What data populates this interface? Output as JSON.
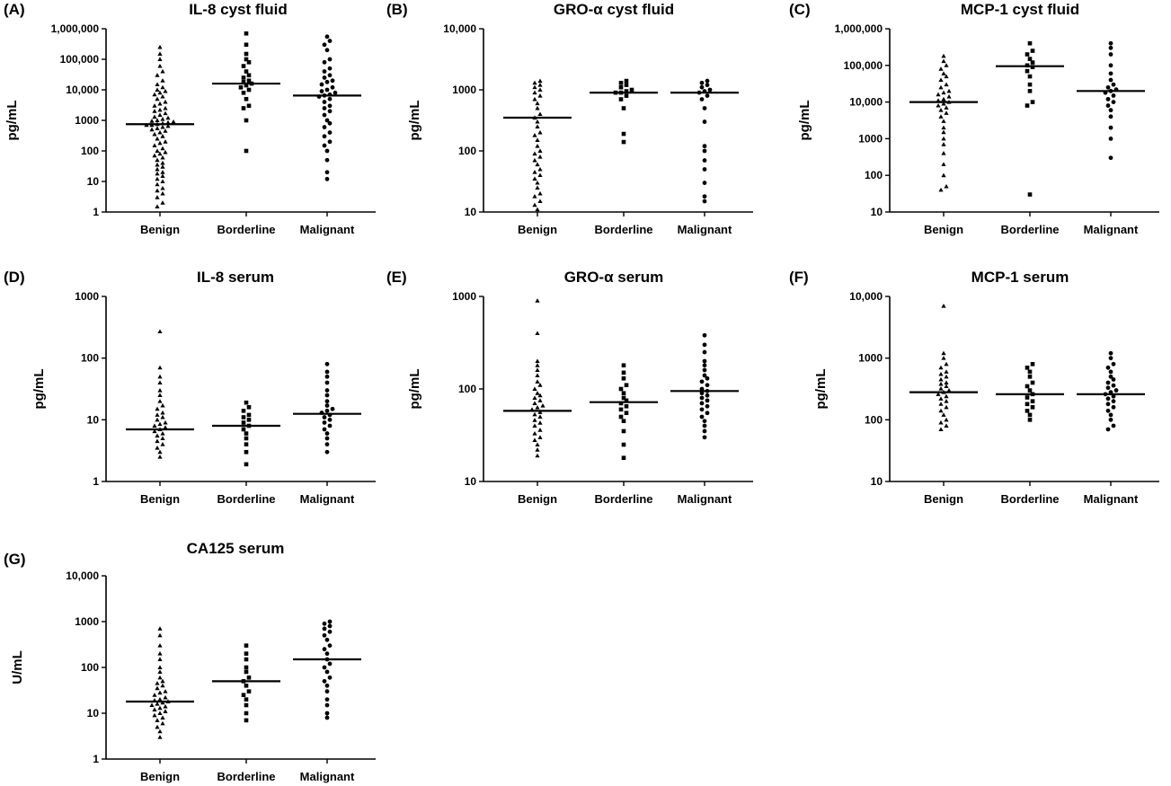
{
  "chart_data": [
    {
      "id": "A",
      "panel_label": "(A)",
      "type": "scatter",
      "title": "IL-8 cyst fluid",
      "ylabel": "pg/mL",
      "scale": "log",
      "ylim": [
        1,
        1000000
      ],
      "yticks": [
        "1",
        "10",
        "100",
        "1000",
        "10,000",
        "100,000",
        "1,000,000"
      ],
      "categories": [
        "Benign",
        "Borderline",
        "Malignant"
      ],
      "markers": [
        "triangle",
        "square",
        "circle"
      ],
      "medians": [
        750,
        16000,
        6500
      ],
      "series": [
        {
          "name": "Benign",
          "values": [
            1.5,
            2,
            3,
            4,
            5,
            6,
            8,
            10,
            12,
            15,
            18,
            20,
            25,
            30,
            35,
            40,
            50,
            60,
            70,
            80,
            90,
            100,
            120,
            150,
            180,
            200,
            250,
            300,
            350,
            400,
            450,
            500,
            550,
            600,
            650,
            700,
            700,
            750,
            800,
            850,
            900,
            950,
            1000,
            1100,
            1200,
            1300,
            1500,
            1700,
            2000,
            2200,
            2500,
            3000,
            3500,
            4000,
            5000,
            6000,
            7000,
            8000,
            9000,
            10000,
            12000,
            15000,
            20000,
            30000,
            40000,
            60000,
            100000,
            150000,
            250000
          ]
        },
        {
          "name": "Borderline",
          "values": [
            100,
            1000,
            2500,
            3000,
            5000,
            8000,
            10000,
            12000,
            14000,
            16000,
            18000,
            20000,
            25000,
            30000,
            40000,
            60000,
            80000,
            100000,
            150000,
            300000,
            700000
          ]
        },
        {
          "name": "Malignant",
          "values": [
            12,
            20,
            50,
            100,
            150,
            200,
            300,
            400,
            600,
            800,
            1000,
            1500,
            2000,
            2500,
            3000,
            4000,
            5000,
            6000,
            6500,
            7000,
            8000,
            9000,
            10000,
            12000,
            15000,
            18000,
            20000,
            25000,
            30000,
            40000,
            50000,
            80000,
            100000,
            200000,
            300000,
            400000,
            550000
          ]
        }
      ]
    },
    {
      "id": "B",
      "panel_label": "(B)",
      "type": "scatter",
      "title": "GRO-α cyst fluid",
      "ylabel": "pg/mL",
      "scale": "log",
      "ylim": [
        10,
        10000
      ],
      "yticks": [
        "10",
        "100",
        "1000",
        "10,000"
      ],
      "categories": [
        "Benign",
        "Borderline",
        "Malignant"
      ],
      "markers": [
        "triangle",
        "square",
        "circle"
      ],
      "medians": [
        350,
        900,
        900
      ],
      "series": [
        {
          "name": "Benign",
          "values": [
            11,
            13,
            15,
            18,
            20,
            25,
            30,
            35,
            40,
            45,
            50,
            60,
            70,
            80,
            90,
            100,
            120,
            150,
            180,
            200,
            250,
            300,
            350,
            400,
            500,
            600,
            700,
            800,
            900,
            1000,
            1100,
            1200,
            1300,
            1400
          ]
        },
        {
          "name": "Borderline",
          "values": [
            140,
            190,
            500,
            700,
            800,
            900,
            900,
            950,
            1000,
            1100,
            1200,
            1300,
            1400
          ]
        },
        {
          "name": "Malignant",
          "values": [
            15,
            18,
            30,
            50,
            70,
            100,
            120,
            300,
            500,
            700,
            800,
            900,
            950,
            1000,
            1100,
            1200,
            1300,
            1400
          ]
        }
      ]
    },
    {
      "id": "C",
      "panel_label": "(C)",
      "type": "scatter",
      "title": "MCP-1 cyst fluid",
      "ylabel": "pg/mL",
      "scale": "log",
      "ylim": [
        10,
        1000000
      ],
      "yticks": [
        "10",
        "100",
        "1000",
        "10,000",
        "100,000",
        "1,000,000"
      ],
      "categories": [
        "Benign",
        "Borderline",
        "Malignant"
      ],
      "markers": [
        "triangle",
        "square",
        "circle"
      ],
      "medians": [
        10000,
        95000,
        20000
      ],
      "series": [
        {
          "name": "Benign",
          "values": [
            40,
            50,
            100,
            200,
            400,
            700,
            1000,
            1500,
            2000,
            3000,
            4000,
            5000,
            6000,
            7000,
            8000,
            9000,
            10000,
            11000,
            12000,
            14000,
            16000,
            18000,
            20000,
            25000,
            30000,
            40000,
            50000,
            60000,
            80000,
            100000,
            130000,
            180000
          ]
        },
        {
          "name": "Borderline",
          "values": [
            30,
            8000,
            10000,
            20000,
            30000,
            50000,
            70000,
            90000,
            100000,
            120000,
            150000,
            200000,
            250000,
            400000
          ]
        },
        {
          "name": "Malignant",
          "values": [
            300,
            1000,
            2000,
            4000,
            6000,
            8000,
            10000,
            12000,
            15000,
            18000,
            20000,
            22000,
            25000,
            30000,
            40000,
            60000,
            100000,
            200000,
            300000,
            400000
          ]
        }
      ]
    },
    {
      "id": "D",
      "panel_label": "(D)",
      "type": "scatter",
      "title": "IL-8 serum",
      "ylabel": "pg/mL",
      "scale": "log",
      "ylim": [
        1,
        1000
      ],
      "yticks": [
        "1",
        "10",
        "100",
        "1000"
      ],
      "categories": [
        "Benign",
        "Borderline",
        "Malignant"
      ],
      "markers": [
        "triangle",
        "square",
        "circle"
      ],
      "medians": [
        7,
        8,
        12.5
      ],
      "series": [
        {
          "name": "Benign",
          "values": [
            2.5,
            3,
            3.5,
            4,
            4.5,
            5,
            5.5,
            6,
            6.5,
            7,
            7.5,
            8,
            8.5,
            9,
            10,
            11,
            12,
            13,
            15,
            17,
            20,
            25,
            30,
            40,
            50,
            70,
            270
          ]
        },
        {
          "name": "Borderline",
          "values": [
            1.9,
            3,
            4,
            5,
            6,
            7,
            8,
            9,
            10,
            11,
            12,
            14,
            16,
            19
          ]
        },
        {
          "name": "Malignant",
          "values": [
            3,
            4,
            5,
            6,
            7,
            8,
            9,
            10,
            11,
            12,
            13,
            14,
            15,
            17,
            20,
            25,
            30,
            40,
            50,
            60,
            80
          ]
        }
      ]
    },
    {
      "id": "E",
      "panel_label": "(E)",
      "type": "scatter",
      "title": "GRO-α serum",
      "ylabel": "pg/mL",
      "scale": "log",
      "ylim": [
        10,
        1000
      ],
      "yticks": [
        "10",
        "100",
        "1000"
      ],
      "categories": [
        "Benign",
        "Borderline",
        "Malignant"
      ],
      "markers": [
        "triangle",
        "square",
        "circle"
      ],
      "medians": [
        58,
        72,
        95
      ],
      "series": [
        {
          "name": "Benign",
          "values": [
            19,
            22,
            25,
            28,
            30,
            33,
            36,
            40,
            43,
            46,
            50,
            53,
            56,
            60,
            63,
            66,
            70,
            75,
            80,
            85,
            90,
            100,
            110,
            120,
            140,
            160,
            180,
            200,
            400,
            900
          ]
        },
        {
          "name": "Borderline",
          "values": [
            18,
            25,
            35,
            45,
            50,
            55,
            60,
            65,
            70,
            75,
            80,
            90,
            100,
            110,
            130,
            150,
            180
          ]
        },
        {
          "name": "Malignant",
          "values": [
            30,
            35,
            40,
            45,
            50,
            55,
            60,
            65,
            70,
            75,
            80,
            85,
            90,
            95,
            100,
            110,
            120,
            130,
            140,
            160,
            180,
            200,
            250,
            300,
            380
          ]
        }
      ]
    },
    {
      "id": "F",
      "panel_label": "(F)",
      "type": "scatter",
      "title": "MCP-1 serum",
      "ylabel": "pg/mL",
      "scale": "log",
      "ylim": [
        10,
        10000
      ],
      "yticks": [
        "10",
        "100",
        "1000",
        "10,000"
      ],
      "categories": [
        "Benign",
        "Borderline",
        "Malignant"
      ],
      "markers": [
        "triangle",
        "square",
        "circle"
      ],
      "medians": [
        280,
        260,
        260
      ],
      "series": [
        {
          "name": "Benign",
          "values": [
            70,
            80,
            90,
            100,
            120,
            140,
            160,
            180,
            200,
            220,
            240,
            260,
            280,
            300,
            320,
            350,
            380,
            400,
            450,
            500,
            550,
            600,
            700,
            800,
            1000,
            1200,
            7000
          ]
        },
        {
          "name": "Borderline",
          "values": [
            100,
            120,
            140,
            160,
            180,
            200,
            230,
            260,
            300,
            350,
            400,
            500,
            600,
            700,
            800
          ]
        },
        {
          "name": "Malignant",
          "values": [
            70,
            80,
            100,
            120,
            140,
            160,
            180,
            200,
            220,
            240,
            260,
            280,
            300,
            330,
            360,
            400,
            450,
            500,
            600,
            700,
            800,
            1000,
            1200
          ]
        }
      ]
    },
    {
      "id": "G",
      "panel_label": "(G)",
      "type": "scatter",
      "title": "CA125 serum",
      "ylabel": "U/mL",
      "scale": "log",
      "ylim": [
        1,
        10000
      ],
      "yticks": [
        "1",
        "10",
        "100",
        "1000",
        "10,000"
      ],
      "categories": [
        "Benign",
        "Borderline",
        "Malignant"
      ],
      "markers": [
        "triangle",
        "square",
        "circle"
      ],
      "medians": [
        18,
        50,
        150
      ],
      "series": [
        {
          "name": "Benign",
          "values": [
            3,
            4,
            5,
            6,
            7,
            8,
            9,
            10,
            11,
            12,
            13,
            14,
            15,
            16,
            17,
            18,
            19,
            20,
            22,
            25,
            28,
            30,
            35,
            40,
            45,
            50,
            60,
            80,
            100,
            150,
            200,
            300,
            500,
            700
          ]
        },
        {
          "name": "Borderline",
          "values": [
            7,
            10,
            15,
            20,
            25,
            30,
            40,
            50,
            60,
            80,
            100,
            150,
            200,
            300
          ]
        },
        {
          "name": "Malignant",
          "values": [
            8,
            10,
            15,
            20,
            30,
            40,
            50,
            60,
            80,
            100,
            120,
            150,
            200,
            250,
            300,
            400,
            500,
            600,
            700,
            800,
            900,
            1000
          ]
        }
      ]
    }
  ]
}
